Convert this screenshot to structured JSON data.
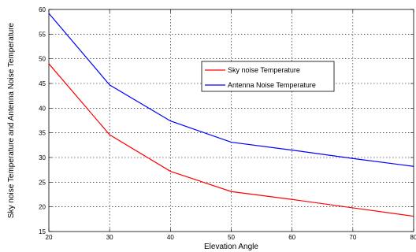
{
  "chart_data": {
    "type": "line",
    "xlabel": "Elevation Angle",
    "ylabel": "Sky noise Temperature and Antenna Noise Temperature",
    "x": [
      20,
      30,
      40,
      50,
      60,
      70,
      80
    ],
    "xlim": [
      20,
      80
    ],
    "ylim": [
      15,
      60
    ],
    "xticks": [
      20,
      30,
      40,
      50,
      60,
      70,
      80
    ],
    "yticks": [
      15,
      20,
      25,
      30,
      35,
      40,
      45,
      50,
      55,
      60
    ],
    "grid": true,
    "legend_position": "upper-middle-right",
    "series": [
      {
        "name": "Sky noise Temperature",
        "color": "#ff0000",
        "values": [
          49,
          34.6,
          27.2,
          23.1,
          21.5,
          19.8,
          18.1
        ]
      },
      {
        "name": "Antenna Noise Temperature",
        "color": "#0000ff",
        "values": [
          59.2,
          44.7,
          37.4,
          33.1,
          31.5,
          29.8,
          28.2
        ]
      }
    ]
  }
}
